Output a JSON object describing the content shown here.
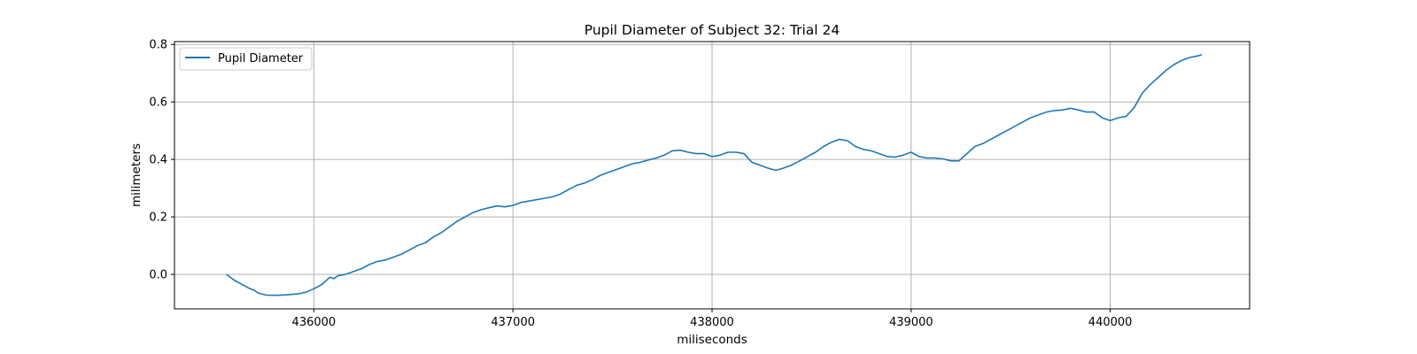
{
  "chart_data": {
    "type": "line",
    "title": "Pupil Diameter of Subject 32: Trial 24",
    "xlabel": "miliseconds",
    "ylabel": "milimeters",
    "xlim": [
      435300,
      440700
    ],
    "ylim": [
      -0.12,
      0.81
    ],
    "xticks": [
      436000,
      437000,
      438000,
      439000,
      440000
    ],
    "yticks": [
      0.0,
      0.2,
      0.4,
      0.6,
      0.8
    ],
    "xtick_labels": [
      "436000",
      "437000",
      "438000",
      "439000",
      "440000"
    ],
    "ytick_labels": [
      "0.0",
      "0.2",
      "0.4",
      "0.6",
      "0.8"
    ],
    "grid": true,
    "legend": {
      "position": "top-left",
      "entries": [
        "Pupil Diameter"
      ]
    },
    "series": [
      {
        "name": "Pupil Diameter",
        "color": "#1f77b4",
        "x": [
          435560,
          435600,
          435640,
          435680,
          435700,
          435720,
          435760,
          435800,
          435840,
          435880,
          435920,
          435960,
          436000,
          436040,
          436080,
          436100,
          436120,
          436160,
          436200,
          436240,
          436280,
          436320,
          436360,
          436400,
          436440,
          436480,
          436520,
          436560,
          436600,
          436640,
          436680,
          436720,
          436760,
          436800,
          436840,
          436880,
          436920,
          436960,
          437000,
          437040,
          437080,
          437120,
          437160,
          437200,
          437240,
          437280,
          437320,
          437360,
          437400,
          437440,
          437480,
          437520,
          437560,
          437600,
          437640,
          437680,
          437720,
          437760,
          437800,
          437840,
          437880,
          437920,
          437960,
          438000,
          438040,
          438080,
          438120,
          438160,
          438200,
          438240,
          438280,
          438320,
          438360,
          438400,
          438440,
          438480,
          438520,
          438560,
          438600,
          438640,
          438680,
          438720,
          438760,
          438800,
          438840,
          438880,
          438920,
          438960,
          439000,
          439040,
          439080,
          439120,
          439160,
          439200,
          439240,
          439280,
          439320,
          439360,
          439400,
          439440,
          439480,
          439520,
          439560,
          439600,
          439640,
          439680,
          439720,
          439760,
          439800,
          439840,
          439880,
          439920,
          439960,
          440000,
          440040,
          440080,
          440120,
          440160,
          440200,
          440240,
          440280,
          440320,
          440360,
          440400,
          440440,
          440460
        ],
        "y": [
          0.0,
          -0.02,
          -0.035,
          -0.05,
          -0.055,
          -0.065,
          -0.072,
          -0.073,
          -0.072,
          -0.07,
          -0.068,
          -0.062,
          -0.05,
          -0.035,
          -0.01,
          -0.015,
          -0.005,
          0.0,
          0.01,
          0.02,
          0.035,
          0.045,
          0.05,
          0.06,
          0.07,
          0.085,
          0.1,
          0.11,
          0.13,
          0.145,
          0.165,
          0.185,
          0.2,
          0.215,
          0.225,
          0.232,
          0.238,
          0.235,
          0.24,
          0.25,
          0.255,
          0.26,
          0.265,
          0.27,
          0.28,
          0.295,
          0.31,
          0.318,
          0.33,
          0.345,
          0.355,
          0.365,
          0.375,
          0.385,
          0.39,
          0.398,
          0.405,
          0.415,
          0.43,
          0.432,
          0.425,
          0.42,
          0.42,
          0.41,
          0.415,
          0.425,
          0.425,
          0.42,
          0.39,
          0.38,
          0.37,
          0.362,
          0.37,
          0.38,
          0.395,
          0.41,
          0.425,
          0.445,
          0.46,
          0.47,
          0.465,
          0.445,
          0.435,
          0.43,
          0.42,
          0.41,
          0.408,
          0.415,
          0.425,
          0.41,
          0.405,
          0.405,
          0.402,
          0.395,
          0.395,
          0.42,
          0.445,
          0.455,
          0.47,
          0.485,
          0.5,
          0.515,
          0.53,
          0.545,
          0.555,
          0.565,
          0.57,
          0.572,
          0.578,
          0.572,
          0.565,
          0.565,
          0.545,
          0.535,
          0.545,
          0.55,
          0.58,
          0.63,
          0.66,
          0.685,
          0.71,
          0.73,
          0.745,
          0.755,
          0.76,
          0.765
        ]
      }
    ]
  }
}
